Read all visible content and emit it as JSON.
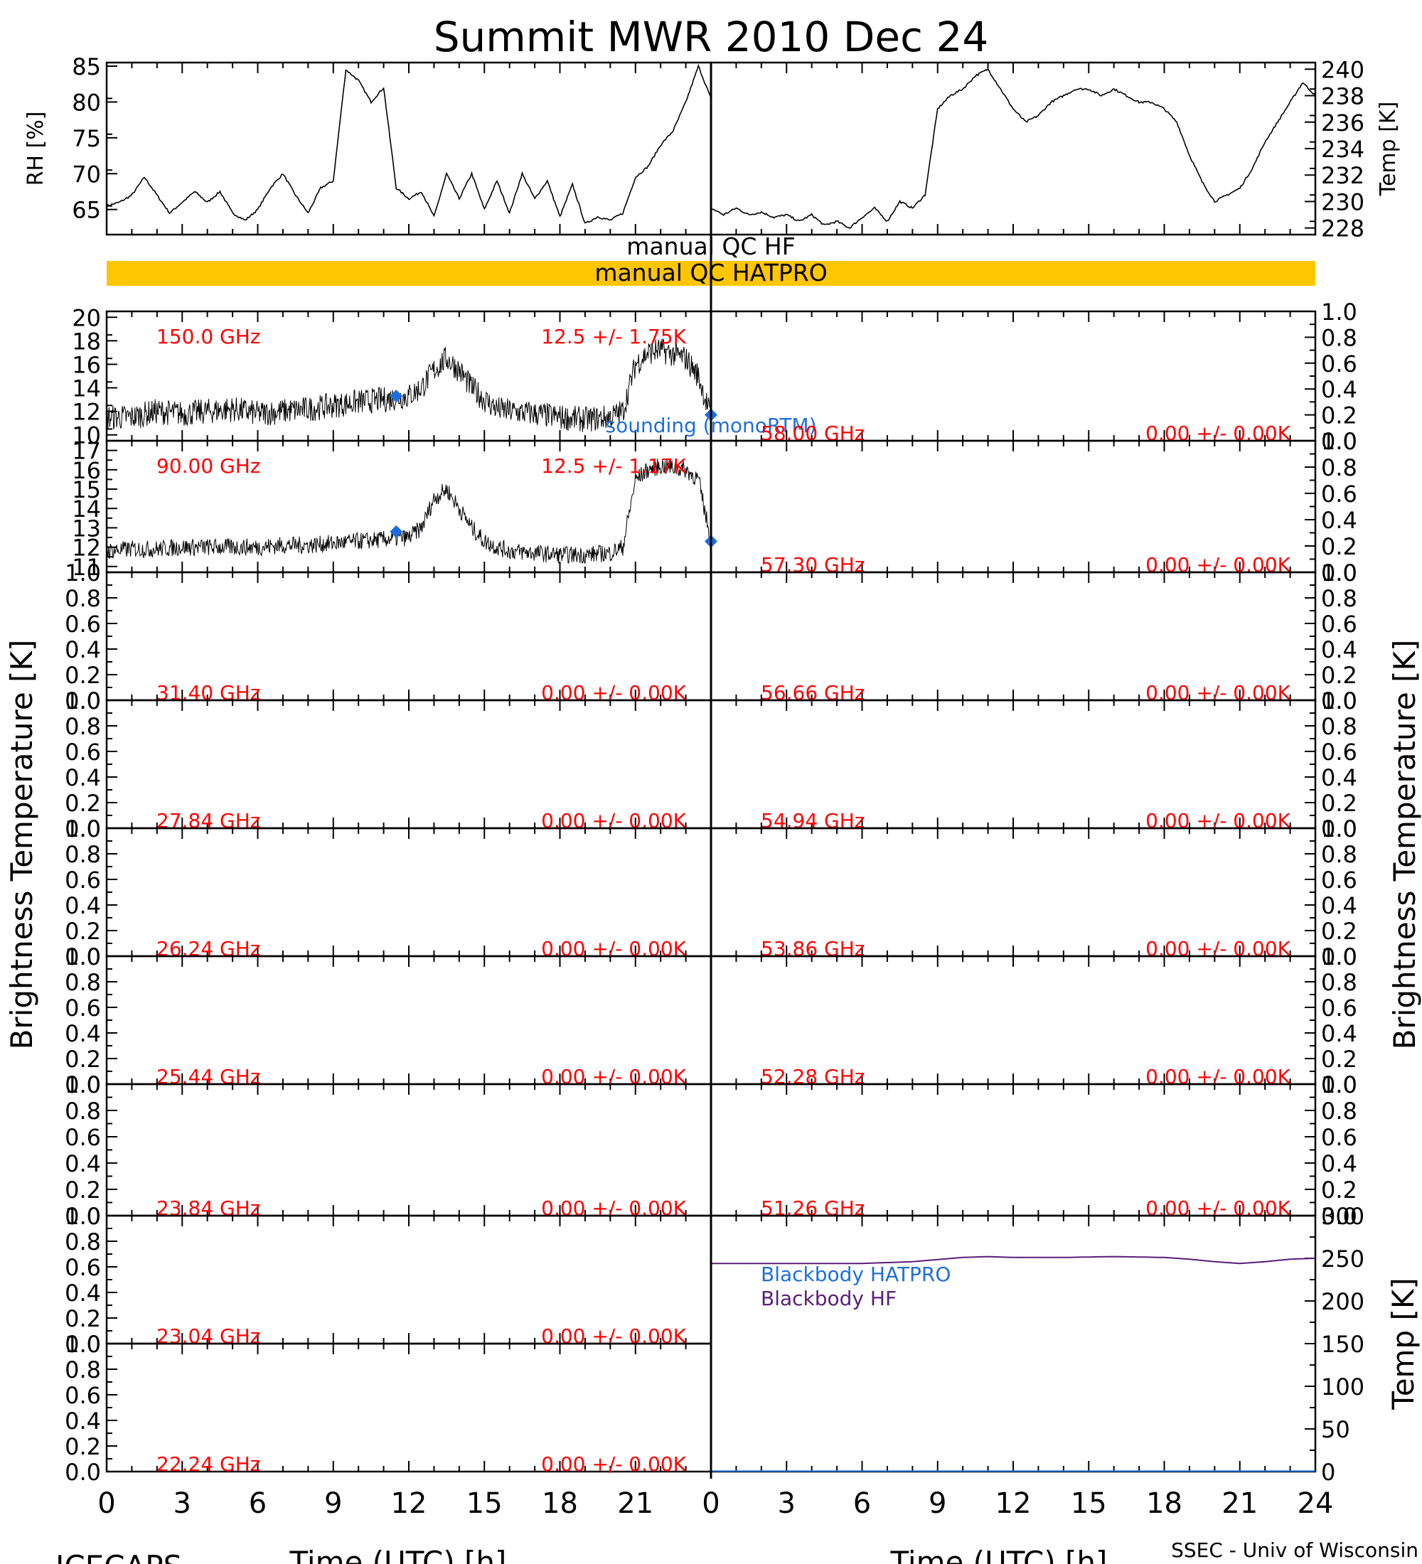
{
  "title": "Summit MWR 2010 Dec 24",
  "footer": {
    "left": "ICECAPS",
    "right": "SSEC - Univ of Wisconsin"
  },
  "xlabel": "Time (UTC) [h]",
  "ylabel_bt": "Brightness Temperature [K]",
  "xticks": [
    "0",
    "3",
    "6",
    "9",
    "12",
    "15",
    "18",
    "21",
    "24"
  ],
  "colors": {
    "stats": "#ff0000",
    "sounding": "#1e6fdc",
    "qc_bar": "#ffc600",
    "bb_hatpro": "#1e6fdc",
    "bb_hf": "#5a1e78",
    "trace": "#000000"
  },
  "qc": {
    "hf_label": "manual  QC  HF",
    "hatpro_label": "manual  QC  HATPRO",
    "hf_flagged": false,
    "hatpro_flagged": true
  },
  "chart_data": [
    {
      "id": "rh",
      "type": "line",
      "ylabel": "RH [%]",
      "ylim": [
        61.5,
        85.5
      ],
      "yticks": [
        "65",
        "70",
        "75",
        "80",
        "85"
      ],
      "x": [
        0,
        0.5,
        1,
        1.5,
        2,
        2.5,
        3,
        3.5,
        4,
        4.5,
        5,
        5.5,
        6,
        6.5,
        7,
        7.5,
        8,
        8.5,
        9,
        9.5,
        10,
        10.5,
        11,
        11.5,
        12,
        12.5,
        13,
        13.5,
        14,
        14.5,
        15,
        15.5,
        16,
        16.5,
        17,
        17.5,
        18,
        18.5,
        19,
        19.5,
        20,
        20.5,
        21,
        21.5,
        22,
        22.5,
        23,
        23.5,
        24
      ],
      "values": [
        65.5,
        66,
        67,
        69.5,
        67,
        64.5,
        66,
        67.5,
        66,
        67.5,
        64.5,
        63.5,
        65,
        68,
        70,
        67,
        64.5,
        68,
        69,
        84.5,
        83,
        80,
        82,
        68,
        66.5,
        67.5,
        64,
        70,
        66.5,
        70,
        65,
        69,
        64.5,
        70,
        66.5,
        69,
        64,
        68.5,
        63,
        64,
        63.5,
        64.5,
        69.5,
        71,
        74,
        76,
        80,
        85,
        80.5
      ]
    },
    {
      "id": "temp",
      "type": "line",
      "ylabel": "Temp [K]",
      "ylim": [
        227.5,
        240.5
      ],
      "yticks": [
        "228",
        "230",
        "232",
        "234",
        "236",
        "238",
        "240"
      ],
      "x": [
        0,
        0.5,
        1,
        1.5,
        2,
        2.5,
        3,
        3.5,
        4,
        4.5,
        5,
        5.5,
        6,
        6.5,
        7,
        7.5,
        8,
        8.5,
        9,
        9.5,
        10,
        10.5,
        11,
        11.5,
        12,
        12.5,
        13,
        13.5,
        14,
        14.5,
        15,
        15.5,
        16,
        16.5,
        17,
        17.5,
        18,
        18.5,
        19,
        19.5,
        20,
        20.5,
        21,
        21.5,
        22,
        22.5,
        23,
        23.5,
        24
      ],
      "values": [
        229.5,
        229,
        229.5,
        229,
        229.2,
        228.8,
        229,
        228.5,
        229,
        228.2,
        228.5,
        228,
        228.8,
        229.5,
        228.5,
        230,
        229.5,
        230.5,
        237,
        238,
        238.5,
        239.5,
        240,
        238.5,
        237,
        236,
        236.5,
        237.5,
        238,
        238.5,
        238.5,
        238,
        238.5,
        238,
        237.5,
        237.5,
        237,
        236,
        233.5,
        231.5,
        230,
        230.5,
        231,
        232.5,
        234.5,
        236,
        237.5,
        239,
        238
      ]
    },
    {
      "id": "bt150",
      "type": "line",
      "label": "150.0 GHz",
      "stats": "12.5 +/-  1.75K",
      "ylim": [
        9.5,
        20.5
      ],
      "yticks": [
        "10",
        "12",
        "14",
        "16",
        "18",
        "20"
      ],
      "noise": 1.1,
      "x": [
        0,
        1,
        2,
        3,
        4,
        5,
        6,
        7,
        8,
        9,
        10,
        11,
        12,
        12.5,
        13,
        13.5,
        14,
        14.5,
        15,
        15.5,
        16,
        17,
        18,
        19,
        20,
        20.5,
        21,
        21.5,
        22,
        23,
        23.5,
        24
      ],
      "values": [
        11.5,
        11.5,
        12,
        11.8,
        12,
        12.2,
        11.8,
        12,
        12.2,
        12.5,
        12.8,
        13,
        13.3,
        14,
        15.5,
        16.5,
        15.5,
        14,
        13,
        12.2,
        12,
        11.8,
        11.5,
        11.3,
        11.5,
        12,
        16,
        17,
        17.2,
        16.5,
        15,
        11.5
      ],
      "sounding": [
        {
          "x": 11.5,
          "y": 13.3
        },
        {
          "x": 24,
          "y": 11.7
        }
      ],
      "sounding_label": "sounding (monoRTM)"
    },
    {
      "id": "bt90",
      "type": "line",
      "label": "90.00 GHz",
      "stats": "12.5 +/-  1.17K",
      "ylim": [
        10.7,
        17.5
      ],
      "yticks": [
        "11",
        "12",
        "13",
        "14",
        "15",
        "16",
        "17"
      ],
      "noise": 0.45,
      "x": [
        0,
        1,
        2,
        3,
        4,
        5,
        6,
        7,
        8,
        9,
        10,
        11,
        12,
        12.5,
        13,
        13.5,
        14,
        14.5,
        15,
        15.5,
        16,
        17,
        18,
        19,
        20,
        20.5,
        21,
        21.5,
        22,
        23,
        23.5,
        24
      ],
      "values": [
        11.8,
        11.9,
        11.9,
        12,
        12,
        12,
        12,
        12.1,
        12.1,
        12.2,
        12.3,
        12.4,
        12.5,
        13,
        14.5,
        15,
        14,
        13,
        12.3,
        12,
        11.8,
        11.7,
        11.6,
        11.6,
        11.7,
        12,
        15.5,
        16,
        16.2,
        16,
        15.5,
        12.3
      ],
      "sounding": [
        {
          "x": 11.5,
          "y": 12.8
        },
        {
          "x": 24,
          "y": 12.3
        }
      ]
    },
    {
      "id": "bt5800",
      "type": "line",
      "label": "58.00 GHz",
      "stats": "0.00 +/-  0.00K",
      "ylim": [
        0,
        1
      ],
      "yticks": [
        "0.0",
        "0.2",
        "0.4",
        "0.6",
        "0.8",
        "1.0"
      ],
      "x": [],
      "values": []
    },
    {
      "id": "bt5730",
      "type": "line",
      "label": "57.30 GHz",
      "stats": "0.00 +/-  0.00K",
      "ylim": [
        0,
        1
      ],
      "yticks": [
        "0.0",
        "0.2",
        "0.4",
        "0.6",
        "0.8",
        "1.0"
      ],
      "x": [],
      "values": []
    },
    {
      "id": "bt3140",
      "type": "line",
      "label": "31.40 GHz",
      "stats": "0.00 +/-  0.00K",
      "ylim": [
        0,
        1
      ],
      "yticks": [
        "0.0",
        "0.2",
        "0.4",
        "0.6",
        "0.8",
        "1.0"
      ],
      "x": [],
      "values": []
    },
    {
      "id": "bt5666",
      "type": "line",
      "label": "56.66 GHz",
      "stats": "0.00 +/-  0.00K",
      "ylim": [
        0,
        1
      ],
      "yticks": [
        "0.0",
        "0.2",
        "0.4",
        "0.6",
        "0.8",
        "1.0"
      ],
      "x": [],
      "values": []
    },
    {
      "id": "bt2784",
      "type": "line",
      "label": "27.84 GHz",
      "stats": "0.00 +/-  0.00K",
      "ylim": [
        0,
        1
      ],
      "yticks": [
        "0.0",
        "0.2",
        "0.4",
        "0.6",
        "0.8",
        "1.0"
      ],
      "x": [],
      "values": []
    },
    {
      "id": "bt5494",
      "type": "line",
      "label": "54.94 GHz",
      "stats": "0.00 +/-  0.00K",
      "ylim": [
        0,
        1
      ],
      "yticks": [
        "0.0",
        "0.2",
        "0.4",
        "0.6",
        "0.8",
        "1.0"
      ],
      "x": [],
      "values": []
    },
    {
      "id": "bt2624",
      "type": "line",
      "label": "26.24 GHz",
      "stats": "0.00 +/-  0.00K",
      "ylim": [
        0,
        1
      ],
      "yticks": [
        "0.0",
        "0.2",
        "0.4",
        "0.6",
        "0.8",
        "1.0"
      ],
      "x": [],
      "values": []
    },
    {
      "id": "bt5386",
      "type": "line",
      "label": "53.86 GHz",
      "stats": "0.00 +/-  0.00K",
      "ylim": [
        0,
        1
      ],
      "yticks": [
        "0.0",
        "0.2",
        "0.4",
        "0.6",
        "0.8",
        "1.0"
      ],
      "x": [],
      "values": []
    },
    {
      "id": "bt2544",
      "type": "line",
      "label": "25.44 GHz",
      "stats": "0.00 +/-  0.00K",
      "ylim": [
        0,
        1
      ],
      "yticks": [
        "0.0",
        "0.2",
        "0.4",
        "0.6",
        "0.8",
        "1.0"
      ],
      "x": [],
      "values": []
    },
    {
      "id": "bt5228",
      "type": "line",
      "label": "52.28 GHz",
      "stats": "0.00 +/-  0.00K",
      "ylim": [
        0,
        1
      ],
      "yticks": [
        "0.0",
        "0.2",
        "0.4",
        "0.6",
        "0.8",
        "1.0"
      ],
      "x": [],
      "values": []
    },
    {
      "id": "bt2384",
      "type": "line",
      "label": "23.84 GHz",
      "stats": "0.00 +/-  0.00K",
      "ylim": [
        0,
        1
      ],
      "yticks": [
        "0.0",
        "0.2",
        "0.4",
        "0.6",
        "0.8",
        "1.0"
      ],
      "x": [],
      "values": []
    },
    {
      "id": "bt5126",
      "type": "line",
      "label": "51.26 GHz",
      "stats": "0.00 +/-  0.00K",
      "ylim": [
        0,
        1
      ],
      "yticks": [
        "0.0",
        "0.2",
        "0.4",
        "0.6",
        "0.8",
        "1.0"
      ],
      "x": [],
      "values": []
    },
    {
      "id": "bt2304",
      "type": "line",
      "label": "23.04 GHz",
      "stats": "0.00 +/-  0.00K",
      "ylim": [
        0,
        1
      ],
      "yticks": [
        "0.0",
        "0.2",
        "0.4",
        "0.6",
        "0.8",
        "1.0"
      ],
      "x": [],
      "values": []
    },
    {
      "id": "blackbody",
      "type": "line",
      "ylabel": "Temp [K]",
      "ylim": [
        0,
        300
      ],
      "yticks": [
        "0",
        "50",
        "100",
        "150",
        "200",
        "250",
        "300"
      ],
      "series": [
        {
          "name": "Blackbody HATPRO",
          "x": [
            0,
            24
          ],
          "values": [
            0.5,
            0.5
          ]
        },
        {
          "name": "Blackbody HF",
          "x": [
            0,
            2,
            4,
            6,
            8,
            10,
            11,
            12,
            14,
            16,
            18,
            19,
            20,
            21,
            22,
            23,
            24
          ],
          "values": [
            244,
            244,
            244,
            244,
            246,
            251,
            252,
            251,
            251,
            252,
            251,
            249,
            246,
            244,
            246,
            249,
            250
          ]
        }
      ]
    },
    {
      "id": "bt2224",
      "type": "line",
      "label": "22.24 GHz",
      "stats": "0.00 +/-  0.00K",
      "ylim": [
        0,
        1
      ],
      "yticks": [
        "0.0",
        "0.2",
        "0.4",
        "0.6",
        "0.8",
        "1.0"
      ],
      "x": [],
      "values": []
    }
  ]
}
